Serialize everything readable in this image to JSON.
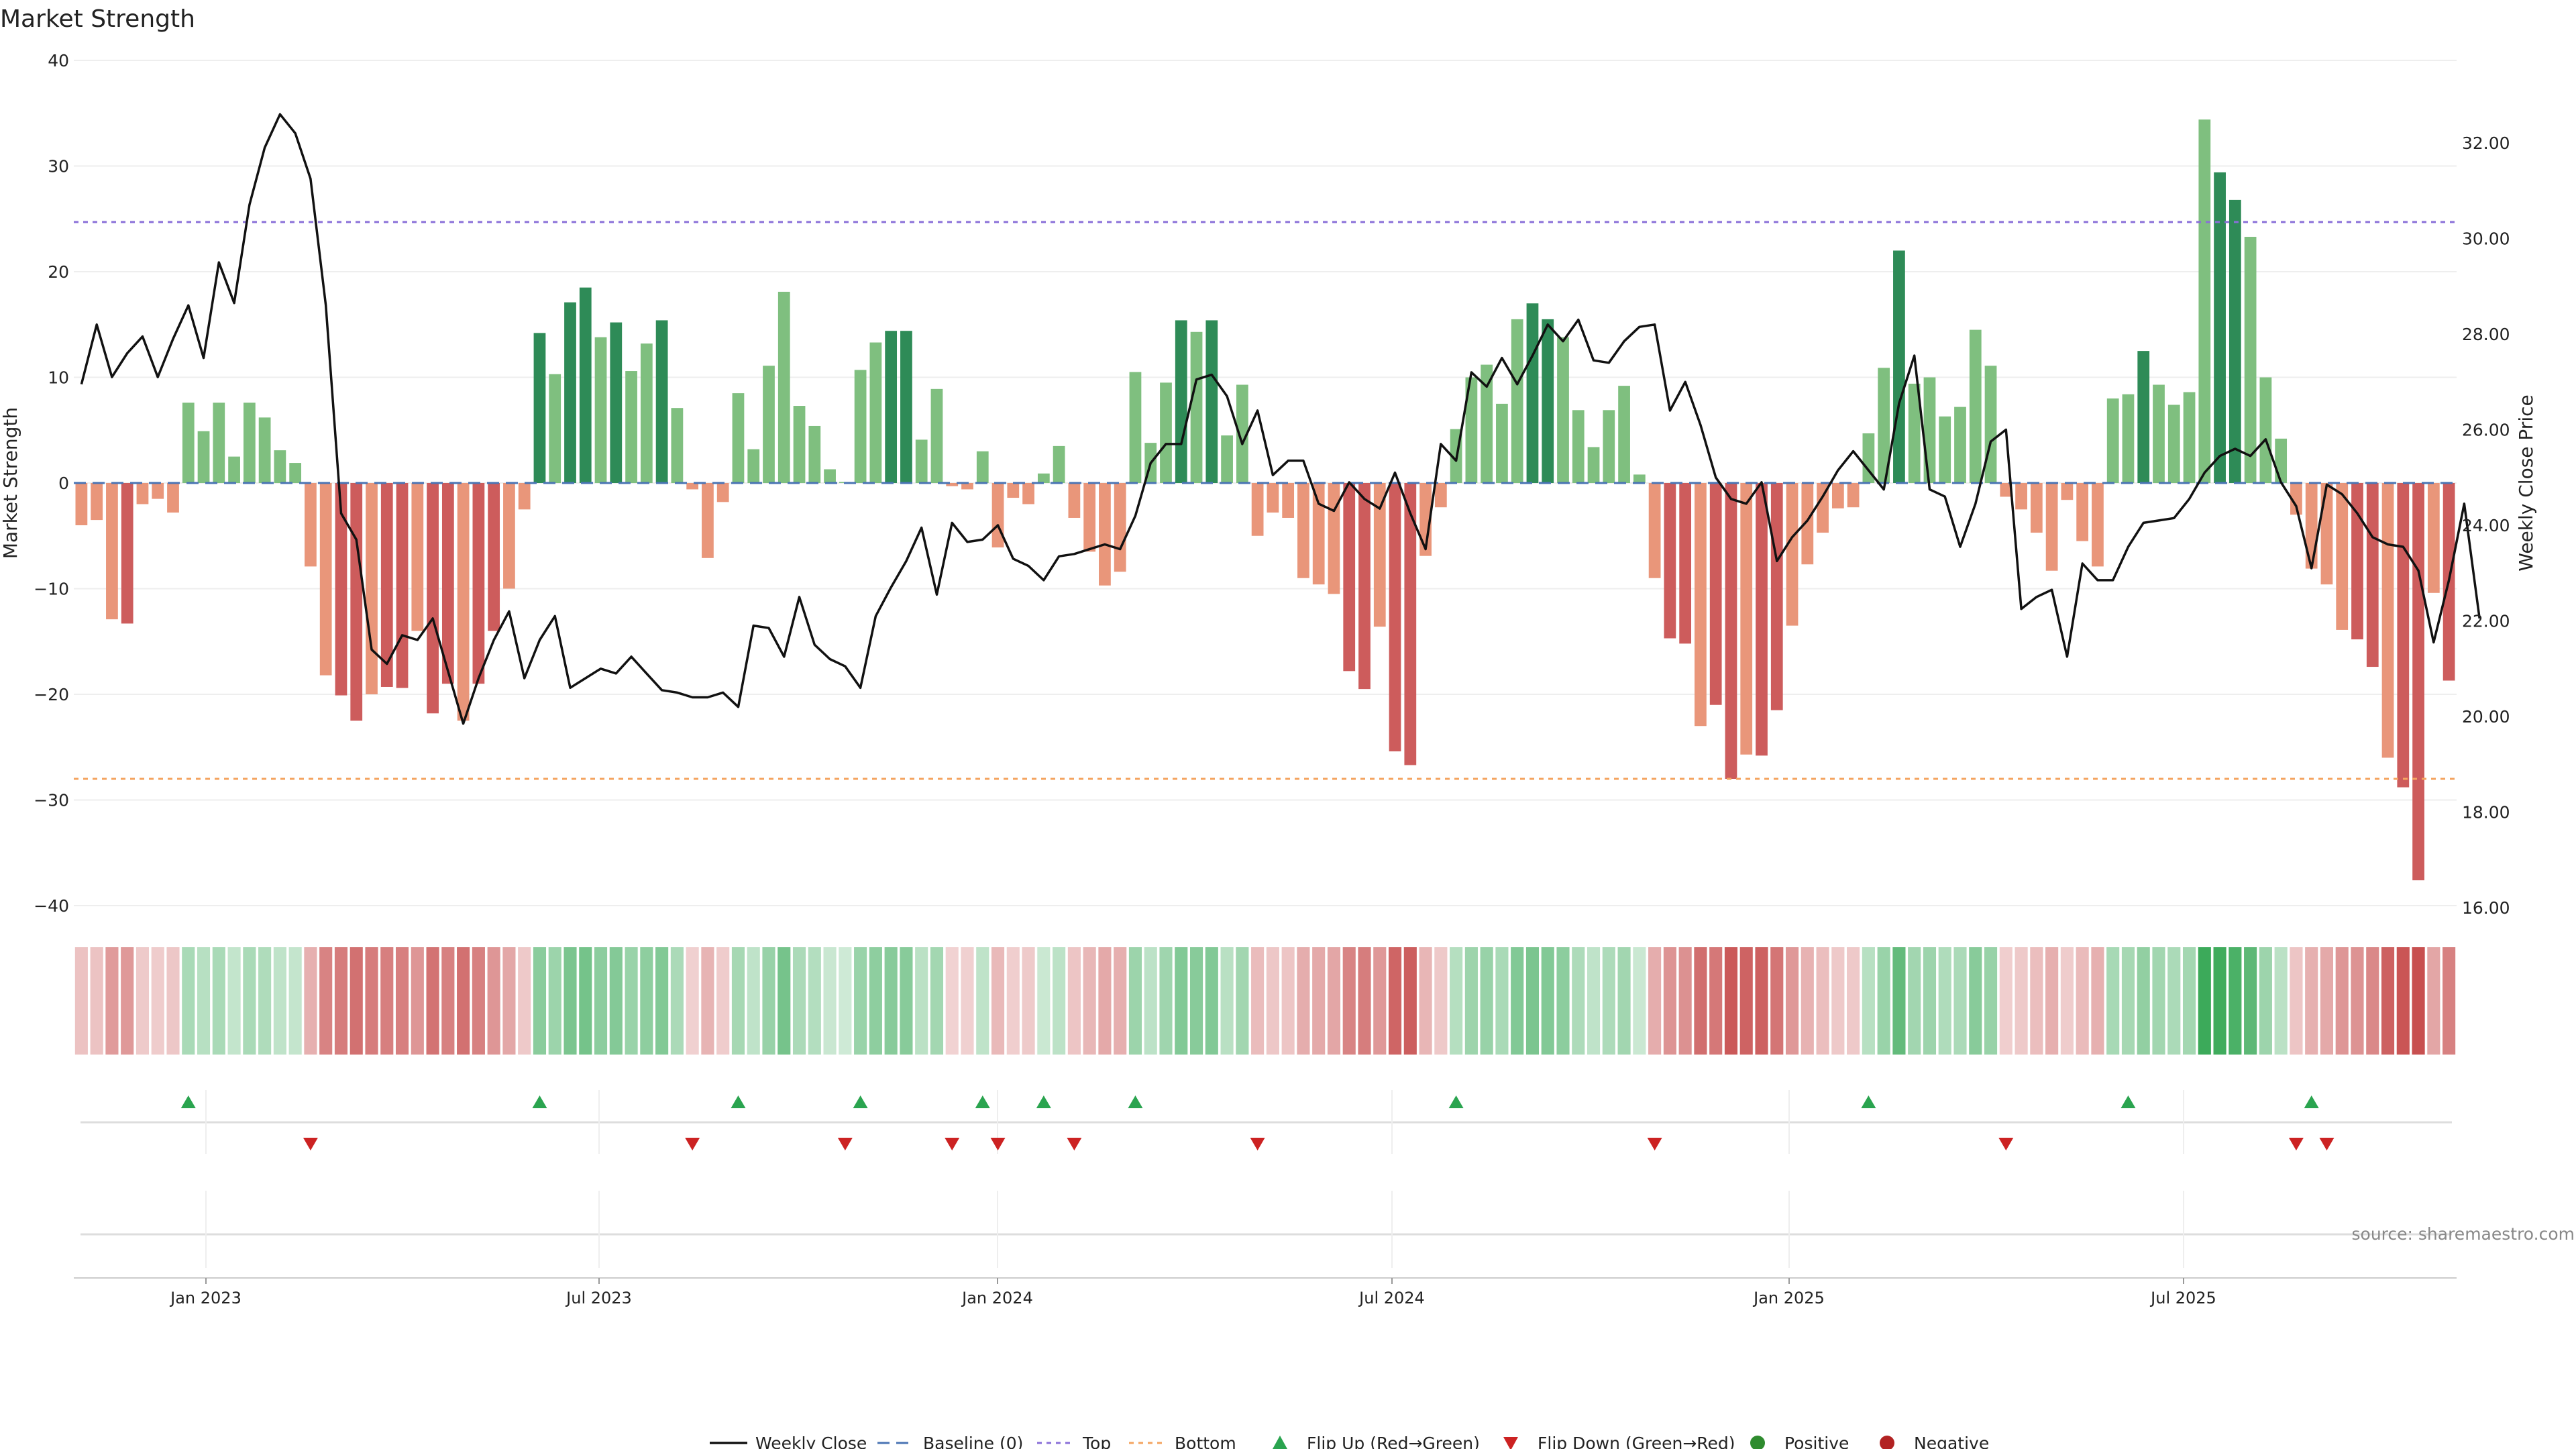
{
  "chart_data": {
    "type": "bar+line",
    "title": "Market Strength",
    "ylabel": "Market Strength",
    "y2label": "Weekly Close Price",
    "ylim": [
      -40,
      40
    ],
    "y2lim": [
      16,
      33.5
    ],
    "yticks": [
      "40",
      "30",
      "20",
      "10",
      "0",
      "−10",
      "−20",
      "−30",
      "−40"
    ],
    "y2ticks": [
      "32.00",
      "30.00",
      "28.00",
      "26.00",
      "24.00",
      "22.00",
      "20.00",
      "18.00",
      "16.00"
    ],
    "xticks": [
      "Jan 2023",
      "Jul 2023",
      "Jan 2024",
      "Jul 2024",
      "Jan 2025",
      "Jul 2025"
    ],
    "top_line": 24.7,
    "bottom_line": -28,
    "source": "source: sharemaestro.com",
    "legend": [
      "Weekly Close",
      "Baseline (0)",
      "Top",
      "Bottom",
      "Flip Up (Red→Green)",
      "Flip Down (Green→Red)",
      "Positive",
      "Negative"
    ],
    "colors": {
      "pos_strong": "#2e8b57",
      "pos_light": "#7fbf7f",
      "neg_strong": "#cd5c5c",
      "neg_light": "#e9967a",
      "top": "#8a6fd8",
      "bottom": "#f4a460",
      "baseline": "#4a74b4",
      "flip_up": "#2aa44f",
      "flip_down": "#cc2222",
      "line": "#111111"
    },
    "strength": [
      -4,
      -3.5,
      -12.9,
      -13.3,
      -2,
      -1.5,
      -2.8,
      7.6,
      4.9,
      7.6,
      2.5,
      7.6,
      6.2,
      3.1,
      1.9,
      -7.9,
      -18.2,
      -20.1,
      -22.5,
      -20,
      -19.3,
      -19.4,
      -14,
      -21.8,
      -19,
      -22.5,
      -19,
      -14,
      -10,
      -2.5,
      14.2,
      10.3,
      17.1,
      18.5,
      13.8,
      15.2,
      10.6,
      13.2,
      15.4,
      7.1,
      -0.6,
      -7.1,
      -1.8,
      8.5,
      3.2,
      11.1,
      18.1,
      7.3,
      5.4,
      1.3,
      0.1,
      10.7,
      13.3,
      14.4,
      14.4,
      4.1,
      8.9,
      -0.3,
      -0.6,
      3,
      -6.1,
      -1.4,
      -2,
      0.9,
      3.5,
      -3.3,
      -6.5,
      -9.7,
      -8.4,
      10.5,
      3.8,
      9.5,
      15.4,
      14.3,
      15.4,
      4.5,
      9.3,
      -5,
      -2.8,
      -3.3,
      -9,
      -9.6,
      -10.5,
      -17.8,
      -19.5,
      -13.6,
      -25.4,
      -26.7,
      -6.9,
      -2.3,
      5.1,
      10,
      11.2,
      7.5,
      15.5,
      17,
      15.5,
      13.8,
      6.9,
      3.4,
      6.9,
      9.2,
      0.8,
      -9,
      -14.7,
      -15.2,
      -23,
      -21,
      -28,
      -25.7,
      -25.8,
      -21.5,
      -13.5,
      -7.7,
      -4.7,
      -2.4,
      -2.3,
      4.7,
      10.9,
      22,
      9.4,
      10,
      6.3,
      7.2,
      14.5,
      11.1,
      -1.3,
      -2.5,
      -4.7,
      -8.3,
      -1.6,
      -5.5,
      -7.9,
      8,
      8.4,
      12.5,
      9.3,
      7.4,
      8.6,
      34.4,
      29.4,
      26.8,
      23.3,
      10,
      4.2,
      -3,
      -8.1,
      -9.6,
      -13.9,
      -14.8,
      -17.4,
      -26,
      -28.8,
      -37.6,
      -10.4,
      -18.7
    ],
    "close": [
      26.95,
      28.2,
      27.1,
      27.6,
      27.95,
      27.1,
      27.9,
      28.6,
      27.5,
      29.5,
      28.65,
      30.7,
      31.9,
      32.6,
      32.2,
      31.25,
      28.6,
      24.25,
      23.7,
      21.4,
      21.1,
      21.7,
      21.6,
      22.05,
      20.95,
      19.85,
      20.8,
      21.6,
      22.2,
      20.8,
      21.6,
      22.1,
      20.6,
      20.8,
      21,
      20.9,
      21.25,
      20.9,
      20.55,
      20.5,
      20.4,
      20.4,
      20.5,
      20.2,
      21.9,
      21.85,
      21.25,
      22.5,
      21.5,
      21.2,
      21.05,
      20.6,
      22.1,
      22.7,
      23.25,
      23.95,
      22.55,
      24.05,
      23.65,
      23.7,
      24,
      23.3,
      23.15,
      22.85,
      23.35,
      23.4,
      23.5,
      23.6,
      23.5,
      24.2,
      25.3,
      25.7,
      25.7,
      27.05,
      27.15,
      26.7,
      25.7,
      26.4,
      25.05,
      25.35,
      25.35,
      24.45,
      24.3,
      24.9,
      24.55,
      24.35,
      25.1,
      24.25,
      23.5,
      25.7,
      25.35,
      27.2,
      26.9,
      27.5,
      26.95,
      27.55,
      28.2,
      27.85,
      28.3,
      27.45,
      27.4,
      27.85,
      28.15,
      28.2,
      26.4,
      27,
      26.1,
      25,
      24.55,
      24.45,
      24.9,
      23.25,
      23.75,
      24.1,
      24.6,
      25.15,
      25.55,
      25.15,
      24.75,
      26.55,
      27.55,
      24.75,
      24.6,
      23.55,
      24.45,
      25.75,
      26,
      22.25,
      22.5,
      22.65,
      21.25,
      23.2,
      22.85,
      22.85,
      23.55,
      24.05,
      24.1,
      24.15,
      24.55,
      25.1,
      25.45,
      25.6,
      25.45,
      25.8,
      24.9,
      24.4,
      23.1,
      24.85,
      24.65,
      24.25,
      23.75,
      23.6,
      23.55,
      23.05,
      21.55,
      22.85,
      24.45,
      22.05
    ],
    "flip_up": [
      7,
      30,
      43,
      51,
      59,
      63,
      69,
      90,
      117,
      134,
      146
    ],
    "flip_down": [
      15,
      40,
      50,
      57,
      60,
      65,
      77,
      103,
      126,
      145,
      147
    ]
  }
}
